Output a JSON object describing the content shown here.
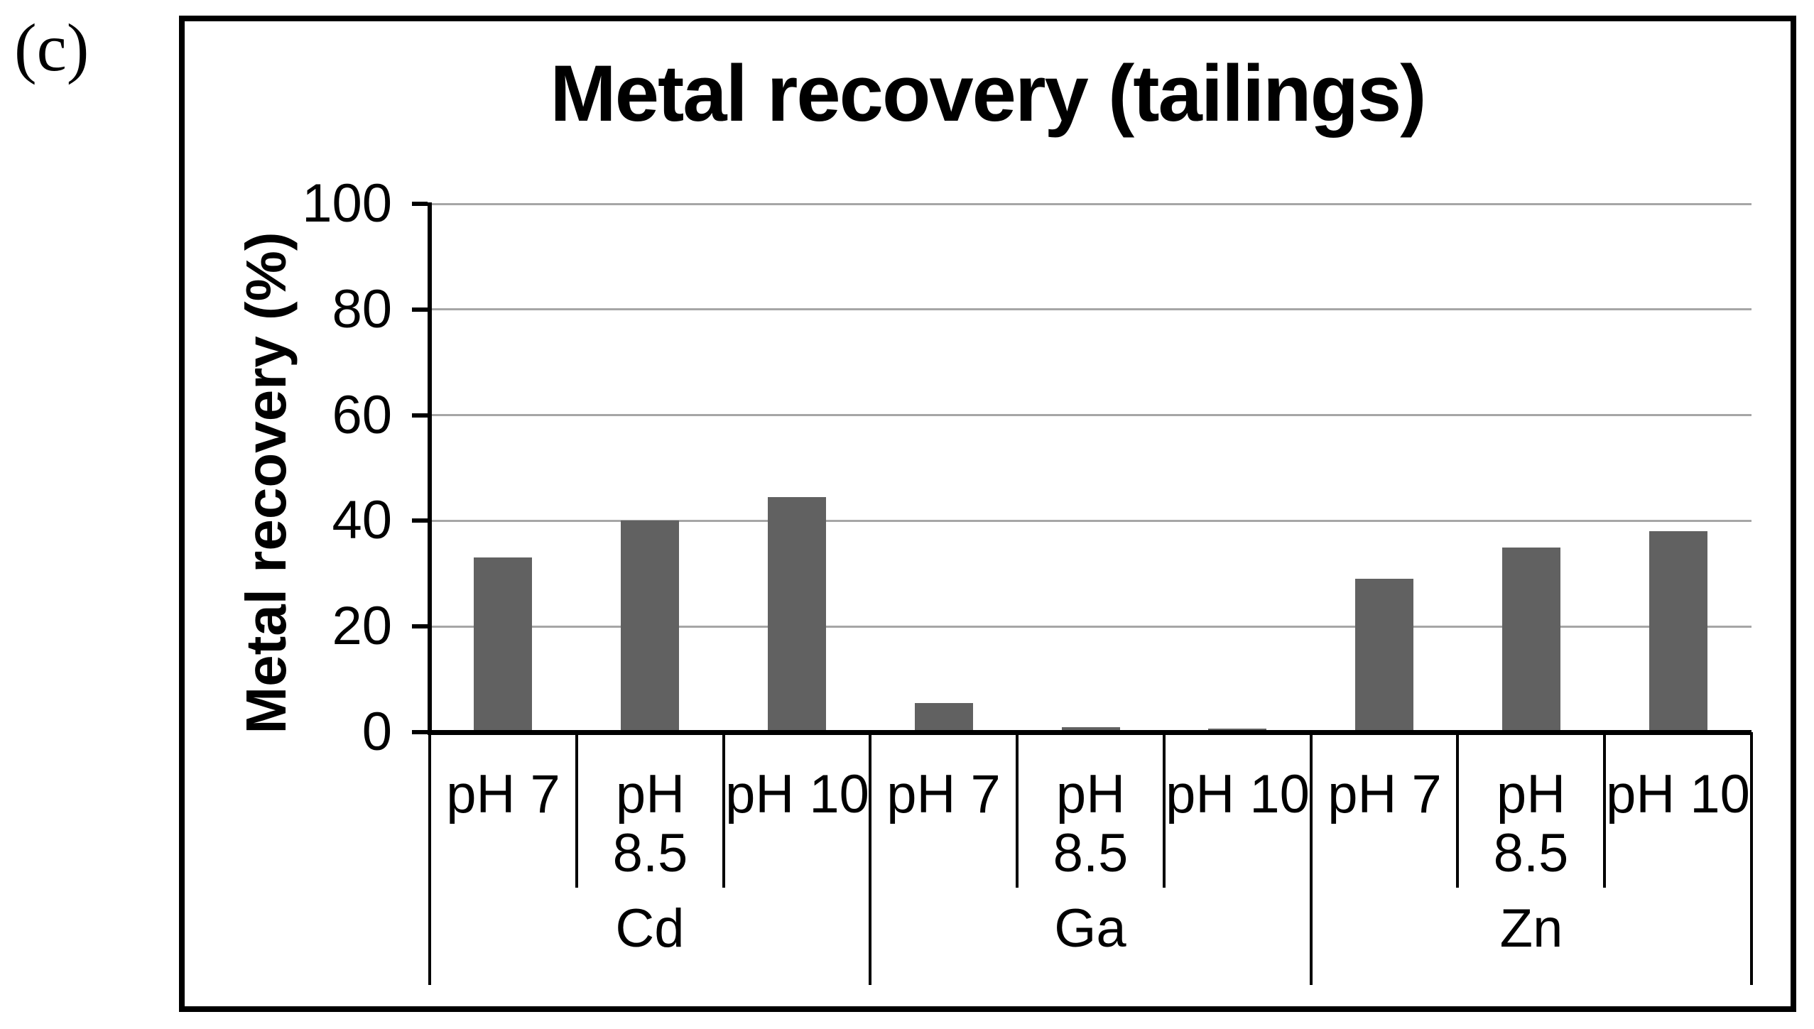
{
  "figure": {
    "panel_label": "(c)"
  },
  "chart_data": {
    "type": "bar",
    "title": "Metal recovery (tailings)",
    "xlabel": "",
    "ylabel": "Metal recovery (%)",
    "ylim": [
      0,
      100
    ],
    "yticks": [
      0,
      20,
      40,
      60,
      80,
      100
    ],
    "grid": true,
    "legend": false,
    "groups": [
      "Cd",
      "Ga",
      "Zn"
    ],
    "categories": [
      "pH 7",
      "pH 8.5",
      "pH 10"
    ],
    "series": [
      {
        "name": "Cd",
        "values": [
          33,
          40,
          44.5
        ]
      },
      {
        "name": "Ga",
        "values": [
          5.5,
          1,
          0.7
        ]
      },
      {
        "name": "Zn",
        "values": [
          29,
          35,
          38
        ]
      }
    ],
    "colors": {
      "bar": "#616161",
      "gridline": "#a6a6a6",
      "axis": "#000000",
      "text": "#000000",
      "background": "#ffffff"
    }
  }
}
